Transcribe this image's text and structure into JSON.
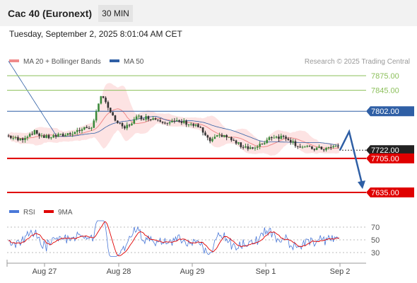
{
  "header": {
    "title": "Cac 40 (Euronext)",
    "interval": "30 MIN"
  },
  "timestamp": "Tuesday, September 2, 2025 8:01:04 AM CET",
  "legend": {
    "items": [
      {
        "label": "MA 20 + Bollinger Bands",
        "color": "#f08a8a"
      },
      {
        "label": "MA 50",
        "color": "#2f5fa5"
      }
    ],
    "credit": "Research © 2025 Trading Central"
  },
  "rsi_legend": {
    "items": [
      {
        "label": "RSI",
        "color": "#4a78d8"
      },
      {
        "label": "9MA",
        "color": "#e00000"
      }
    ]
  },
  "chart_data": {
    "type": "candlestick",
    "price_range": [
      7615,
      7890
    ],
    "x_ticks": [
      "Aug 27",
      "Aug 28",
      "Aug 29",
      "Sep 1",
      "Sep 2"
    ],
    "levels": [
      {
        "value": 7875.0,
        "label": "7875.00",
        "kind": "target",
        "color": "#8bbf5a"
      },
      {
        "value": 7845.0,
        "label": "7845.00",
        "kind": "target",
        "color": "#8bbf5a"
      },
      {
        "value": 7802.0,
        "label": "7802.00",
        "kind": "pivot-resistance",
        "color": "#2f5fa5"
      },
      {
        "value": 7722.0,
        "label": "7722.00",
        "kind": "last-price",
        "color": "#222222"
      },
      {
        "value": 7705.0,
        "label": "7705.00",
        "kind": "pivot",
        "color": "#e00000"
      },
      {
        "value": 7635.0,
        "label": "7635.00",
        "kind": "support",
        "color": "#e00000"
      }
    ],
    "forecast_path": [
      {
        "x": "Sep 2",
        "price": 7722
      },
      {
        "x": "Sep 2",
        "price": 7760
      },
      {
        "x": "Sep 2",
        "price": 7645
      }
    ],
    "rsi": {
      "range": [
        20,
        80
      ],
      "ticks": [
        70,
        50,
        30
      ]
    }
  }
}
